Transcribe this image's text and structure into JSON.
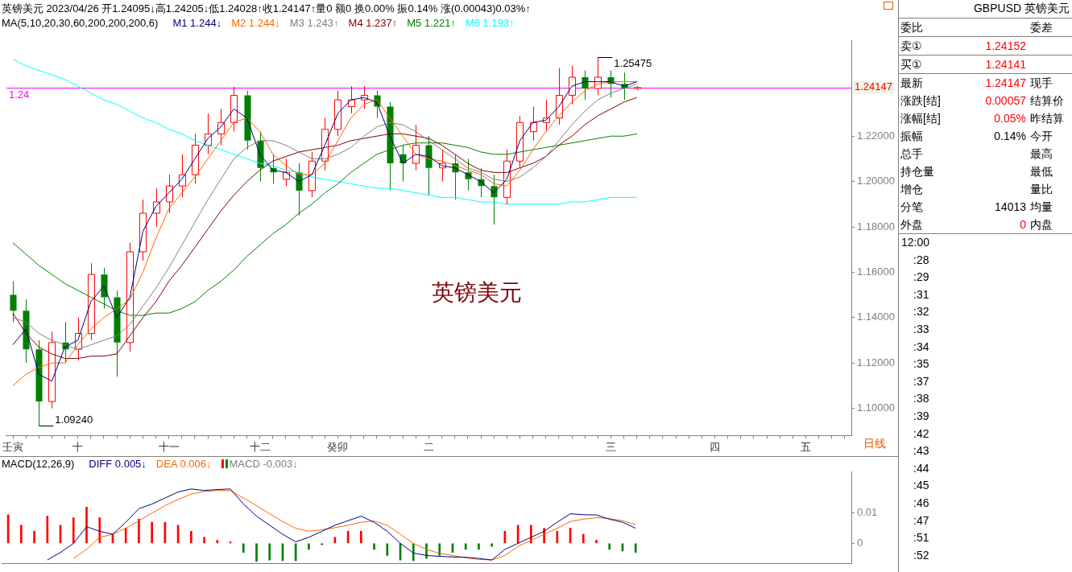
{
  "chart_data": [
    {
      "type": "candlestick",
      "title": "英镑美元 2023/04/26 开1.24095↓高1.24205↓低1.24028↑收1.24147↑量0 额0 换0.00% 振0.14% 涨(0.00043)0.03%↑",
      "legend_title": "MA(5,10,20,30,60,200,200,200,6)",
      "legend": "top left",
      "marker": "none",
      "categories": [
        "壬寅",
        null,
        null,
        null,
        null,
        "十",
        null,
        null,
        null,
        null,
        null,
        null,
        "十一",
        null,
        null,
        null,
        null,
        null,
        null,
        "十二",
        null,
        null,
        null,
        null,
        null,
        "癸卯",
        null,
        null,
        null,
        null,
        null,
        null,
        "二",
        null,
        null,
        null,
        null,
        null,
        null,
        null,
        null,
        null,
        null,
        null,
        null,
        null,
        "三",
        null,
        null,
        null,
        null,
        null,
        null,
        null,
        "四",
        null,
        null,
        null,
        null,
        null,
        null,
        "五",
        null,
        null,
        null
      ],
      "ohlc": [
        [
          1.15,
          1.156,
          1.138,
          1.143
        ],
        [
          1.143,
          1.148,
          1.12,
          1.126
        ],
        [
          1.126,
          1.13,
          1.0924,
          1.103
        ],
        [
          1.103,
          1.134,
          1.1,
          1.129
        ],
        [
          1.129,
          1.138,
          1.12,
          1.126
        ],
        [
          1.126,
          1.14,
          1.121,
          1.133
        ],
        [
          1.133,
          1.164,
          1.13,
          1.159
        ],
        [
          1.159,
          1.162,
          1.144,
          1.149
        ],
        [
          1.149,
          1.152,
          1.114,
          1.129
        ],
        [
          1.129,
          1.173,
          1.125,
          1.169
        ],
        [
          1.169,
          1.192,
          1.165,
          1.186
        ],
        [
          1.186,
          1.197,
          1.18,
          1.191
        ],
        [
          1.191,
          1.203,
          1.186,
          1.198
        ],
        [
          1.198,
          1.212,
          1.193,
          1.203
        ],
        [
          1.203,
          1.221,
          1.199,
          1.216
        ],
        [
          1.216,
          1.23,
          1.212,
          1.221
        ],
        [
          1.221,
          1.232,
          1.216,
          1.226
        ],
        [
          1.226,
          1.2417,
          1.222,
          1.238
        ],
        [
          1.238,
          1.24,
          1.214,
          1.218
        ],
        [
          1.218,
          1.222,
          1.2,
          1.206
        ],
        [
          1.206,
          1.212,
          1.199,
          1.204
        ],
        [
          1.201,
          1.21,
          1.198,
          1.204
        ],
        [
          1.204,
          1.208,
          1.185,
          1.196
        ],
        [
          1.196,
          1.213,
          1.193,
          1.209
        ],
        [
          1.209,
          1.228,
          1.205,
          1.223
        ],
        [
          1.223,
          1.24,
          1.22,
          1.236
        ],
        [
          1.233,
          1.242,
          1.23,
          1.236
        ],
        [
          1.236,
          1.242,
          1.232,
          1.238
        ],
        [
          1.238,
          1.24,
          1.228,
          1.233
        ],
        [
          1.233,
          1.235,
          1.196,
          1.208
        ],
        [
          1.212,
          1.216,
          1.2,
          1.208
        ],
        [
          1.208,
          1.225,
          1.205,
          1.216
        ],
        [
          1.216,
          1.22,
          1.194,
          1.206
        ],
        [
          1.206,
          1.214,
          1.2,
          1.208
        ],
        [
          1.208,
          1.212,
          1.192,
          1.204
        ],
        [
          1.204,
          1.21,
          1.196,
          1.201
        ],
        [
          1.201,
          1.206,
          1.193,
          1.198
        ],
        [
          1.198,
          1.203,
          1.181,
          1.193
        ],
        [
          1.193,
          1.214,
          1.19,
          1.209
        ],
        [
          1.209,
          1.229,
          1.206,
          1.226
        ],
        [
          1.222,
          1.233,
          1.218,
          1.226
        ],
        [
          1.226,
          1.236,
          1.222,
          1.228
        ],
        [
          1.228,
          1.25,
          1.225,
          1.238
        ],
        [
          1.238,
          1.251,
          1.234,
          1.246
        ],
        [
          1.246,
          1.249,
          1.236,
          1.241
        ],
        [
          1.241,
          1.25475,
          1.238,
          1.246
        ],
        [
          1.246,
          1.249,
          1.237,
          1.243
        ],
        [
          1.243,
          1.248,
          1.236,
          1.241
        ],
        [
          1.24095,
          1.24205,
          1.24028,
          1.24147
        ],
        null,
        null,
        null,
        null,
        null,
        null,
        null,
        null,
        null,
        null,
        null,
        null,
        null,
        null,
        null,
        null
      ],
      "series": [
        {
          "name": "M1 1.244↓",
          "type": "line",
          "color": "#000080",
          "values": [
            1.128,
            1.135,
            1.115,
            1.112,
            1.127,
            1.13,
            1.147,
            1.154,
            1.14,
            1.149,
            1.178,
            1.189,
            1.195,
            1.201,
            1.21,
            1.219,
            1.224,
            1.232,
            1.228,
            1.212,
            1.205,
            1.204,
            1.2,
            1.203,
            1.216,
            1.23,
            1.236,
            1.237,
            1.235,
            1.22,
            1.208,
            1.212,
            1.211,
            1.207,
            1.206,
            1.203,
            1.2,
            1.195,
            1.201,
            1.218,
            1.226,
            1.227,
            1.233,
            1.242,
            1.244,
            1.244,
            1.244,
            1.242,
            1.244,
            null,
            null,
            null,
            null,
            null,
            null,
            null,
            null,
            null,
            null,
            null,
            null,
            null,
            null,
            null,
            null
          ]
        },
        {
          "name": "M2 1.244↓",
          "type": "line",
          "color": "#ff6600",
          "values": [
            1.11,
            1.115,
            1.118,
            1.12,
            1.12,
            1.128,
            1.135,
            1.14,
            1.144,
            1.148,
            1.16,
            1.175,
            1.188,
            1.195,
            1.202,
            1.21,
            1.218,
            1.226,
            1.228,
            1.222,
            1.212,
            1.207,
            1.203,
            1.203,
            1.208,
            1.218,
            1.228,
            1.234,
            1.236,
            1.228,
            1.22,
            1.212,
            1.21,
            1.209,
            1.207,
            1.205,
            1.203,
            1.199,
            1.198,
            1.205,
            1.214,
            1.222,
            1.229,
            1.235,
            1.24,
            1.243,
            1.244,
            1.244,
            1.244,
            null,
            null,
            null,
            null,
            null,
            null,
            null,
            null,
            null,
            null,
            null,
            null,
            null,
            null,
            null,
            null
          ]
        },
        {
          "name": "M3 1.243↑",
          "type": "line",
          "color": "#808080",
          "values": [
            1.14,
            1.138,
            1.133,
            1.13,
            1.128,
            1.126,
            1.128,
            1.13,
            1.132,
            1.137,
            1.145,
            1.153,
            1.162,
            1.172,
            1.182,
            1.192,
            1.201,
            1.21,
            1.215,
            1.218,
            1.218,
            1.216,
            1.213,
            1.21,
            1.21,
            1.212,
            1.215,
            1.22,
            1.224,
            1.226,
            1.225,
            1.222,
            1.218,
            1.214,
            1.21,
            1.206,
            1.204,
            1.201,
            1.2,
            1.202,
            1.206,
            1.211,
            1.218,
            1.225,
            1.231,
            1.236,
            1.239,
            1.241,
            1.243,
            null,
            null,
            null,
            null,
            null,
            null,
            null,
            null,
            null,
            null,
            null,
            null,
            null,
            null,
            null,
            null
          ]
        },
        {
          "name": "M4 1.237↑",
          "type": "line",
          "color": "#800000",
          "values": [
            1.142,
            1.133,
            1.127,
            1.124,
            1.122,
            1.122,
            1.123,
            1.123,
            1.124,
            1.132,
            1.14,
            1.147,
            1.156,
            1.163,
            1.171,
            1.179,
            1.187,
            1.194,
            1.2,
            1.205,
            1.209,
            1.211,
            1.213,
            1.214,
            1.215,
            1.216,
            1.218,
            1.219,
            1.22,
            1.221,
            1.221,
            1.22,
            1.219,
            1.216,
            1.212,
            1.208,
            1.205,
            1.204,
            1.204,
            1.206,
            1.208,
            1.211,
            1.216,
            1.22,
            1.225,
            1.229,
            1.232,
            1.235,
            1.237,
            null,
            null,
            null,
            null,
            null,
            null,
            null,
            null,
            null,
            null,
            null,
            null,
            null,
            null,
            null,
            null
          ]
        },
        {
          "name": "M5 1.221↑",
          "type": "line",
          "color": "#008000",
          "values": [
            1.173,
            1.168,
            1.163,
            1.159,
            1.155,
            1.152,
            1.149,
            1.146,
            1.143,
            1.141,
            1.141,
            1.142,
            1.142,
            1.144,
            1.147,
            1.152,
            1.156,
            1.161,
            1.167,
            1.172,
            1.177,
            1.181,
            1.186,
            1.19,
            1.195,
            1.199,
            1.204,
            1.208,
            1.212,
            1.214,
            1.216,
            1.217,
            1.217,
            1.217,
            1.216,
            1.215,
            1.213,
            1.212,
            1.212,
            1.213,
            1.214,
            1.215,
            1.216,
            1.217,
            1.218,
            1.219,
            1.22,
            1.22,
            1.221,
            null,
            null,
            null,
            null,
            null,
            null,
            null,
            null,
            null,
            null,
            null,
            null,
            null,
            null,
            null,
            null
          ]
        },
        {
          "name": "M6 1.193↑",
          "type": "line",
          "color": "#00ffff",
          "values": [
            1.254,
            1.251,
            1.249,
            1.247,
            1.245,
            1.242,
            1.239,
            1.236,
            1.234,
            1.231,
            1.228,
            1.226,
            1.223,
            1.221,
            1.218,
            1.216,
            1.214,
            1.212,
            1.21,
            1.208,
            1.207,
            1.205,
            1.204,
            1.202,
            1.201,
            1.2,
            1.199,
            1.198,
            1.197,
            1.197,
            1.196,
            1.195,
            1.194,
            1.193,
            1.193,
            1.192,
            1.191,
            1.191,
            1.19,
            1.19,
            1.19,
            1.19,
            1.19,
            1.191,
            1.191,
            1.192,
            1.193,
            1.193,
            1.193,
            null,
            null,
            null,
            null,
            null,
            null,
            null,
            null,
            null,
            null,
            null,
            null,
            null,
            null,
            null,
            null
          ]
        }
      ],
      "ylim": [
        1.088,
        1.262
      ],
      "yticks": [
        {
          "value": 1.1,
          "label": "1.10000"
        },
        {
          "value": 1.12,
          "label": "1.12000"
        },
        {
          "value": 1.14,
          "label": "1.14000"
        },
        {
          "value": 1.16,
          "label": "1.16000"
        },
        {
          "value": 1.18,
          "label": "1.18000"
        },
        {
          "value": 1.2,
          "label": "1.20000"
        },
        {
          "value": 1.22,
          "label": "1.22000"
        }
      ],
      "ref_lines": [
        {
          "axis": "y",
          "value": 1.24147,
          "label": "1.24",
          "color": "#ff00ff"
        }
      ],
      "annotations": [
        "英镑美元",
        "日线",
        "1.24147",
        "1.25475",
        "1.09240"
      ]
    },
    {
      "type": "line",
      "legend_title": "MACD(12,26,9)",
      "legend": "top left",
      "marker": "none",
      "tick_labels": "y",
      "series": [
        {
          "name": "DIFF 0.005↓",
          "type": "line",
          "color": "#000080",
          "values": [
            null,
            null,
            null,
            -0.0055,
            -0.003,
            0.0,
            0.0055,
            0.004,
            0.003,
            0.007,
            0.0115,
            0.013,
            0.015,
            0.017,
            0.018,
            0.0175,
            0.0178,
            0.018,
            0.013,
            0.009,
            0.006,
            0.003,
            0.0005,
            0.002,
            0.004,
            0.006,
            0.0075,
            0.009,
            0.007,
            0.004,
            0.0,
            -0.0032,
            -0.004,
            -0.0043,
            -0.0045,
            -0.0046,
            -0.005,
            -0.0055,
            -0.002,
            0.0,
            0.002,
            0.004,
            0.007,
            0.0098,
            0.0095,
            0.0094,
            0.008,
            0.007,
            0.005,
            null,
            null,
            null,
            null,
            null,
            null,
            null,
            null,
            null,
            null,
            null,
            null,
            null,
            null,
            null,
            null
          ]
        },
        {
          "name": "DEA 0.006↓",
          "type": "line",
          "color": "#ff6600",
          "values": [
            null,
            null,
            null,
            null,
            null,
            -0.005,
            -0.002,
            0.002,
            0.003,
            0.005,
            0.0075,
            0.01,
            0.0125,
            0.0145,
            0.0163,
            0.0172,
            0.0175,
            0.0174,
            0.015,
            0.0125,
            0.0098,
            0.0072,
            0.005,
            0.004,
            0.0045,
            0.0052,
            0.006,
            0.007,
            0.0074,
            0.006,
            0.003,
            0.0,
            -0.002,
            -0.0033,
            -0.004,
            -0.0048,
            -0.0053,
            -0.0055,
            -0.004,
            -0.001,
            0.001,
            0.003,
            0.005,
            0.0072,
            0.008,
            0.0085,
            0.0082,
            0.0075,
            0.0062,
            null,
            null,
            null,
            null,
            null,
            null,
            null,
            null,
            null,
            null,
            null,
            null,
            null,
            null,
            null,
            null
          ]
        },
        {
          "name": "MACD -0.003↓",
          "type": "bar",
          "color": "#808080",
          "colors": [
            "#ff0000",
            "#ff0000",
            "#ff0000",
            "#ff0000",
            "#ff0000",
            "#ff0000",
            "#ff0000",
            "#ff0000",
            "#ff0000",
            "#ff0000",
            "#ff0000",
            "#ff0000",
            "#ff0000",
            "#ff0000",
            "#ff0000",
            "#ff0000",
            "#ff0000",
            "#ff0000",
            "#008000",
            "#008000",
            "#008000",
            "#008000",
            "#008000",
            "#008000",
            "#008000",
            "#ff0000",
            "#ff0000",
            "#ff0000",
            "#008000",
            "#008000",
            "#008000",
            "#008000",
            "#008000",
            "#008000",
            "#008000",
            "#008000",
            "#008000",
            "#008000",
            "#ff0000",
            "#ff0000",
            "#ff0000",
            "#ff0000",
            "#ff0000",
            "#ff0000",
            "#ff0000",
            "#ff0000",
            "#008000",
            "#008000",
            "#008000",
            null,
            null,
            null,
            null,
            null,
            null,
            null,
            null,
            null,
            null,
            null,
            null,
            null,
            null,
            null,
            null
          ],
          "values": [
            0.0095,
            0.006,
            0.004,
            0.009,
            0.006,
            0.0085,
            0.012,
            0.0085,
            0.003,
            0.005,
            0.008,
            0.007,
            0.007,
            0.006,
            0.004,
            0.002,
            0.001,
            0.0005,
            -0.003,
            -0.006,
            -0.0055,
            -0.0057,
            -0.0057,
            -0.002,
            -0.0005,
            0.002,
            0.004,
            0.004,
            -0.002,
            -0.004,
            -0.0055,
            -0.0057,
            -0.005,
            -0.004,
            -0.003,
            -0.002,
            -0.002,
            -0.001,
            0.004,
            0.006,
            0.006,
            0.005,
            0.004,
            0.005,
            0.003,
            0.001,
            -0.002,
            -0.0025,
            -0.003,
            null,
            null,
            null,
            null,
            null,
            null,
            null,
            null,
            null,
            null,
            null,
            null,
            null,
            null,
            null,
            null
          ]
        }
      ],
      "ylim": [
        -0.0066,
        0.0238
      ],
      "yticks": [
        0,
        0.01
      ]
    },
    {
      "type": "other",
      "title": "GBPUSD 英镑美元",
      "y_categories": [
        "委比",
        "卖①",
        "买①",
        "最新",
        "涨跌[结]",
        "涨幅[结]",
        "振幅",
        "总手",
        "持仓量",
        "增仓",
        "分笔",
        "外盘"
      ],
      "cell_labels": [
        [
          null
        ],
        [
          "1.24152"
        ],
        [
          "1.24141"
        ],
        [
          "1.24147"
        ],
        [
          "0.00057"
        ],
        [
          "0.05%"
        ],
        [
          "0.14%"
        ],
        [
          null
        ],
        [
          null
        ],
        [
          null
        ],
        [
          "14013"
        ],
        [
          "0"
        ]
      ],
      "colors": [
        "#000000",
        "#ff0000",
        "#ff0000",
        "#ff0000",
        "#ff0000",
        "#ff0000",
        "#000000",
        "#000000",
        "#000000",
        "#000000",
        "#000000",
        "#ff0000"
      ],
      "y2_categories": [
        "委差",
        null,
        null,
        "现手",
        "结算价",
        "昨结算",
        "今开",
        "最高",
        "最低",
        "量比",
        "均量",
        "内盘"
      ],
      "annotations": [
        "12:00",
        ":28",
        ":29",
        ":31",
        ":32",
        ":33",
        ":34",
        ":35",
        ":37",
        ":38",
        ":39",
        ":42",
        ":43",
        ":44",
        ":45",
        ":46",
        ":47",
        ":51",
        ":52"
      ]
    }
  ]
}
